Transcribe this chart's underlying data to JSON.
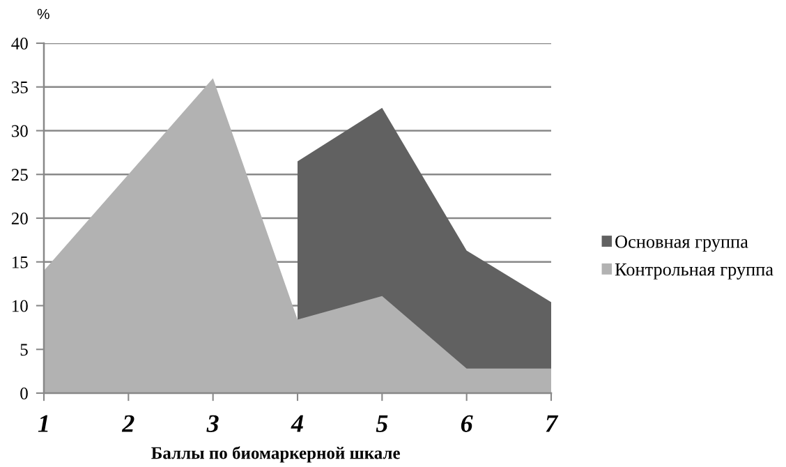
{
  "chart_data": {
    "type": "area",
    "xlabel": "Баллы по биомаркерной шкале",
    "ylabel": "%",
    "categories": [
      "1",
      "2",
      "3",
      "4",
      "5",
      "6",
      "7"
    ],
    "series": [
      {
        "name": "Основная группа",
        "color": "#616161",
        "values": [
          null,
          null,
          null,
          26.5,
          32.6,
          16.3,
          10.4
        ]
      },
      {
        "name": "Контрольная группа",
        "color": "#b2b2b2",
        "values": [
          14,
          25,
          36,
          8.4,
          11.1,
          2.8,
          2.8
        ]
      }
    ],
    "ylim": [
      0,
      40
    ],
    "yticks": [
      0,
      5,
      10,
      15,
      20,
      25,
      30,
      35,
      40
    ],
    "grid": "y",
    "legend": "right"
  }
}
